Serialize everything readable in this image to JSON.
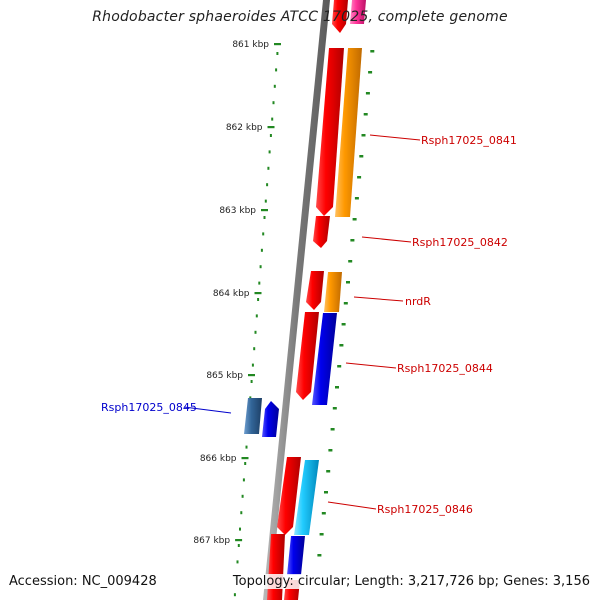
{
  "title": "Rhodobacter sphaeroides ATCC 17025, complete genome",
  "accession": "Accession: NC_009428",
  "stats": "Topology: circular; Length: 3,217,726 bp; Genes: 3,156",
  "ruler_labels": [
    "861 kbp",
    "862 kbp",
    "863 kbp",
    "864 kbp",
    "865 kbp",
    "866 kbp",
    "867 kbp"
  ],
  "gene_labels": [
    {
      "text": "Rsph17025_0841",
      "color": "#cc0000"
    },
    {
      "text": "Rsph17025_0842",
      "color": "#cc0000"
    },
    {
      "text": "nrdR",
      "color": "#cc0000"
    },
    {
      "text": "Rsph17025_0844",
      "color": "#cc0000"
    },
    {
      "text": "Rsph17025_0845",
      "color": "#0000cc"
    },
    {
      "text": "Rsph17025_0846",
      "color": "#cc0000"
    }
  ],
  "colors": {
    "red": "#ee0000",
    "orange": "#ff9900",
    "blue": "#0000ee",
    "steel_blue": "#336699",
    "cyan": "#22ccff",
    "pink": "#ff3399",
    "backbone": "#8a8a8a",
    "ruler": "#228822"
  }
}
